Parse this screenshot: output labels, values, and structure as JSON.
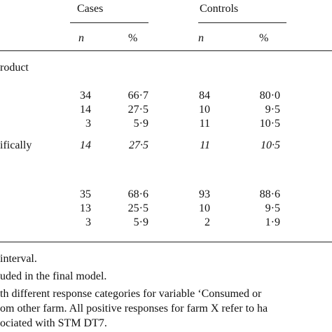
{
  "table": {
    "groups": [
      "Cases",
      "Controls"
    ],
    "columns": [
      "n",
      "%",
      "n",
      "%"
    ],
    "rows": [
      {
        "label": "roduct",
        "cells": []
      },
      {
        "label": "",
        "cells": [
          "34",
          "66·7",
          "84",
          "80·0"
        ]
      },
      {
        "label": "",
        "cells": [
          "14",
          "27·5",
          "10",
          "9·5"
        ]
      },
      {
        "label": "",
        "cells": [
          "3",
          "5·9",
          "11",
          "10·5"
        ]
      },
      {
        "label": "ifically",
        "cells": [
          "14",
          "27·5",
          "11",
          "10·5"
        ],
        "italic": true
      },
      {
        "label": "",
        "cells": [
          "35",
          "68·6",
          "93",
          "88·6"
        ]
      },
      {
        "label": "",
        "cells": [
          "13",
          "25·5",
          "10",
          "9·5"
        ]
      },
      {
        "label": "",
        "cells": [
          "3",
          "5·9",
          "2",
          "1·9"
        ]
      }
    ]
  },
  "footnotes": [
    "interval.",
    "uded in the final model.",
    "th different response categories for variable ‘Consumed or",
    "om other farm. All positive responses for farm X refer to ha",
    "ociated with STM DT7."
  ]
}
